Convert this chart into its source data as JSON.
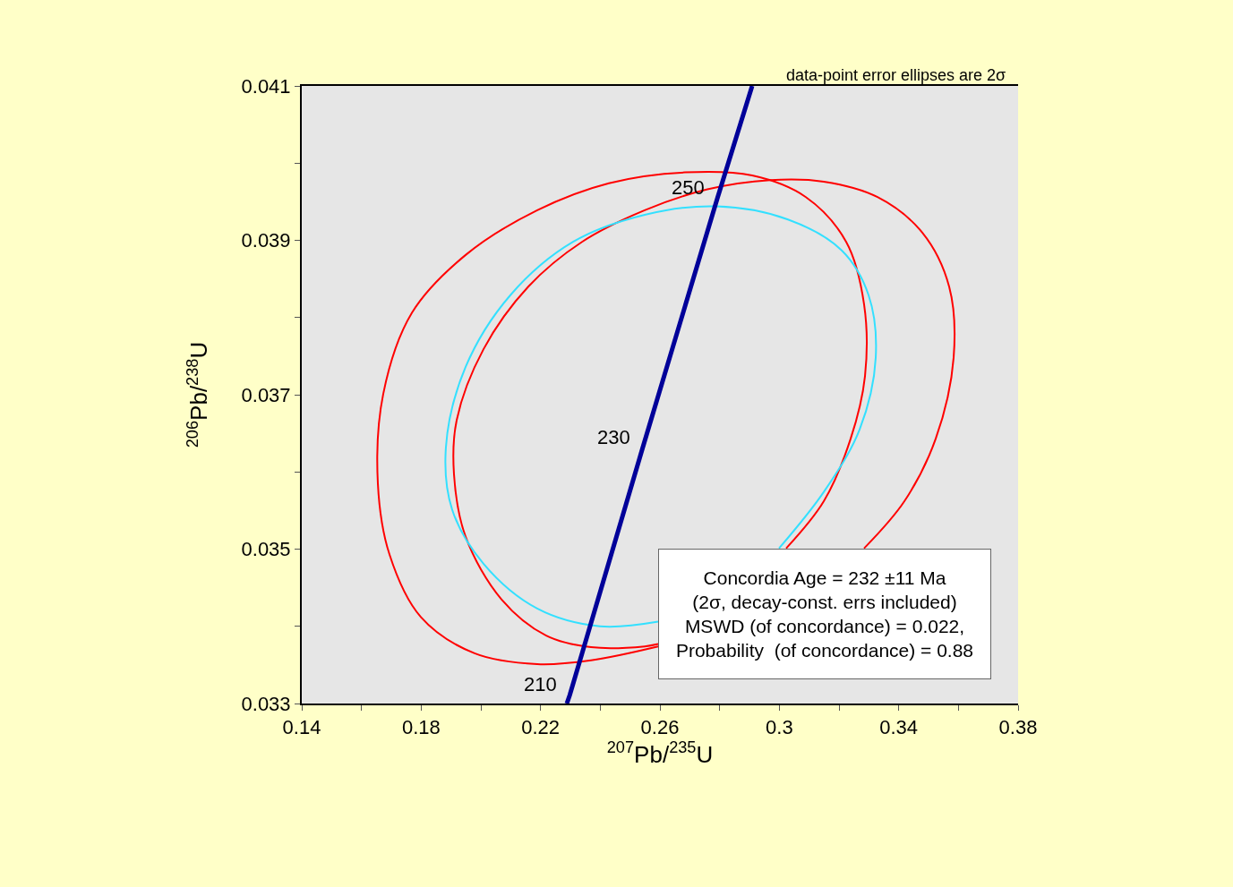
{
  "chart_data": {
    "type": "line",
    "xlabel": "$^{207}$Pb/$^{235}$U",
    "ylabel": "$^{206}$Pb/$^{238}$U",
    "xlim": [
      0.14,
      0.38
    ],
    "ylim": [
      0.033,
      0.041
    ],
    "xticks": [
      0.14,
      {
        "value": 0.16,
        "label": null
      },
      0.18,
      {
        "value": 0.2,
        "label": null
      },
      0.22,
      {
        "value": 0.24,
        "label": null
      },
      0.26,
      {
        "value": 0.28,
        "label": null
      },
      0.3,
      {
        "value": 0.32,
        "label": null
      },
      0.34,
      {
        "value": 0.36,
        "label": null
      },
      0.38
    ],
    "yticks": [
      0.033,
      {
        "value": 0.034,
        "label": null
      },
      0.035,
      {
        "value": 0.036,
        "label": null
      },
      0.037,
      {
        "value": 0.038,
        "label": null
      },
      0.039,
      {
        "value": 0.04,
        "label": null
      },
      0.041
    ],
    "grid": false,
    "marker": "none",
    "line_style": "solid",
    "series": [
      {
        "color": "#ff0000",
        "x": [
          0.3023,
          0.3149,
          0.3239,
          0.3287,
          0.3284,
          0.3224,
          0.3089,
          0.2909,
          0.2684,
          0.2429,
          0.2189,
          0.1949,
          0.1769,
          0.1673,
          0.1655,
          0.1694,
          0.1799,
          0.1979,
          0.2189,
          0.2369,
          0.2594
        ],
        "values": [
          0.03501,
          0.03562,
          0.03643,
          0.03724,
          0.03817,
          0.03898,
          0.03956,
          0.03984,
          0.03988,
          0.03974,
          0.03939,
          0.03881,
          0.03806,
          0.03701,
          0.03585,
          0.03493,
          0.03412,
          0.03365,
          0.03351,
          0.03356,
          0.03374
        ]
      },
      {
        "color": "#ff0000",
        "x": [
          0.3284,
          0.3419,
          0.3524,
          0.3584,
          0.3569,
          0.3479,
          0.3329,
          0.3149,
          0.2969,
          0.2759,
          0.2549,
          0.2339,
          0.2159,
          0.2009,
          0.1919,
          0.191,
          0.1949,
          0.2069,
          0.2219,
          0.2369,
          0.2549,
          0.2594
        ],
        "values": [
          0.03501,
          0.03562,
          0.03643,
          0.03748,
          0.0384,
          0.0391,
          0.03956,
          0.03976,
          0.03978,
          0.03966,
          0.03939,
          0.03898,
          0.0384,
          0.03759,
          0.03667,
          0.03597,
          0.03516,
          0.03435,
          0.03388,
          0.03373,
          0.03374,
          0.03377
        ]
      },
      {
        "color": "#33e0ff",
        "x": [
          0.2999,
          0.3149,
          0.3269,
          0.3323,
          0.3299,
          0.3209,
          0.3029,
          0.2789,
          0.2549,
          0.2309,
          0.2099,
          0.1949,
          0.1883,
          0.1904,
          0.2009,
          0.2189,
          0.2399,
          0.2594
        ],
        "values": [
          0.03501,
          0.03574,
          0.03655,
          0.03748,
          0.03829,
          0.03887,
          0.03927,
          0.03944,
          0.03933,
          0.03898,
          0.03829,
          0.03736,
          0.03632,
          0.03551,
          0.03481,
          0.03423,
          0.034,
          0.03406
        ]
      },
      {
        "color": "#000099",
        "x": [
          0.2288,
          0.2298,
          0.2542,
          0.2792,
          0.2909
        ],
        "values": [
          0.033,
          0.03311,
          0.03631,
          0.03954,
          0.041
        ]
      }
    ],
    "annotations": [
      "data-point error ellipses are 2σ",
      "Concordia Age = 232 ±11 Ma\n(2σ, decay-const. errs included)\nMSWD (of concordance) = 0.022,\nProbability  (of concordance) = 0.88",
      {
        "text": "250",
        "x": 0.2792,
        "y": 0.03954
      },
      {
        "text": "230",
        "x": 0.2542,
        "y": 0.03631
      },
      {
        "text": "210",
        "x": 0.2298,
        "y": 0.03311
      }
    ]
  }
}
